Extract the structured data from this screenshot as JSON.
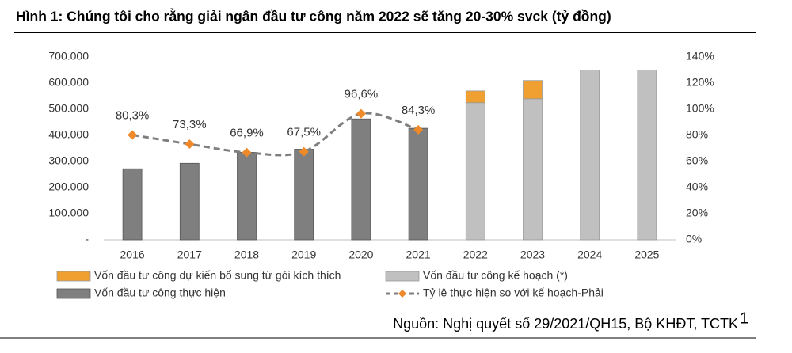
{
  "chart_data": {
    "type": "bar",
    "title": "Hình 1: Chúng tôi cho rằng giải ngân đầu tư công năm 2022 sẽ tăng 20-30% svck (tỷ đồng)",
    "categories": [
      "2016",
      "2017",
      "2018",
      "2019",
      "2020",
      "2021",
      "2022",
      "2023",
      "2024",
      "2025"
    ],
    "series": [
      {
        "name": "Vốn đầu tư công dự kiến bổ sung từ gói kích thích",
        "type": "bar",
        "color": "#f0a030",
        "values": [
          null,
          null,
          null,
          null,
          null,
          null,
          45000,
          70000,
          null,
          null
        ]
      },
      {
        "name": "Vốn đầu tư công kế hoạch (*)",
        "type": "bar",
        "color": "#c0c0c0",
        "values": [
          null,
          null,
          null,
          null,
          null,
          null,
          525000,
          540000,
          650000,
          650000
        ]
      },
      {
        "name": "Vốn đầu tư công thực hiện",
        "type": "bar",
        "color": "#7f7f7f",
        "values": [
          272000,
          293000,
          335000,
          347000,
          463000,
          427000,
          null,
          null,
          null,
          null
        ]
      },
      {
        "name": "Tỷ lệ thực hiện so với kế hoạch-Phải",
        "type": "line",
        "axis": "y2",
        "color": "#7f7f7f",
        "marker_color": "#ee8a2a",
        "values": [
          80.3,
          73.3,
          66.9,
          67.5,
          96.6,
          84.3,
          null,
          null,
          null,
          null
        ],
        "value_labels": [
          "80,3%",
          "73,3%",
          "66,9%",
          "67,5%",
          "96,6%",
          "84,3%",
          null,
          null,
          null,
          null
        ]
      }
    ],
    "ylim": [
      0,
      700000
    ],
    "yticks": [
      {
        "value": 0,
        "label": "-"
      },
      {
        "value": 100000,
        "label": "100.000"
      },
      {
        "value": 200000,
        "label": "200.000"
      },
      {
        "value": 300000,
        "label": "300.000"
      },
      {
        "value": 400000,
        "label": "400.000"
      },
      {
        "value": 500000,
        "label": "500.000"
      },
      {
        "value": 600000,
        "label": "600.000"
      },
      {
        "value": 700000,
        "label": "700.000"
      }
    ],
    "y2lim": [
      0,
      140
    ],
    "y2ticks": [
      {
        "value": 0,
        "label": "0%"
      },
      {
        "value": 20,
        "label": "20%"
      },
      {
        "value": 40,
        "label": "40%"
      },
      {
        "value": 60,
        "label": "60%"
      },
      {
        "value": 80,
        "label": "80%"
      },
      {
        "value": 100,
        "label": "100%"
      },
      {
        "value": 120,
        "label": "120%"
      },
      {
        "value": 140,
        "label": "140%"
      }
    ],
    "grid": false,
    "source": "Nguồn: Nghị quyết số 29/2021/QH15, Bộ KHĐT, TCTK",
    "page_number": "1"
  }
}
